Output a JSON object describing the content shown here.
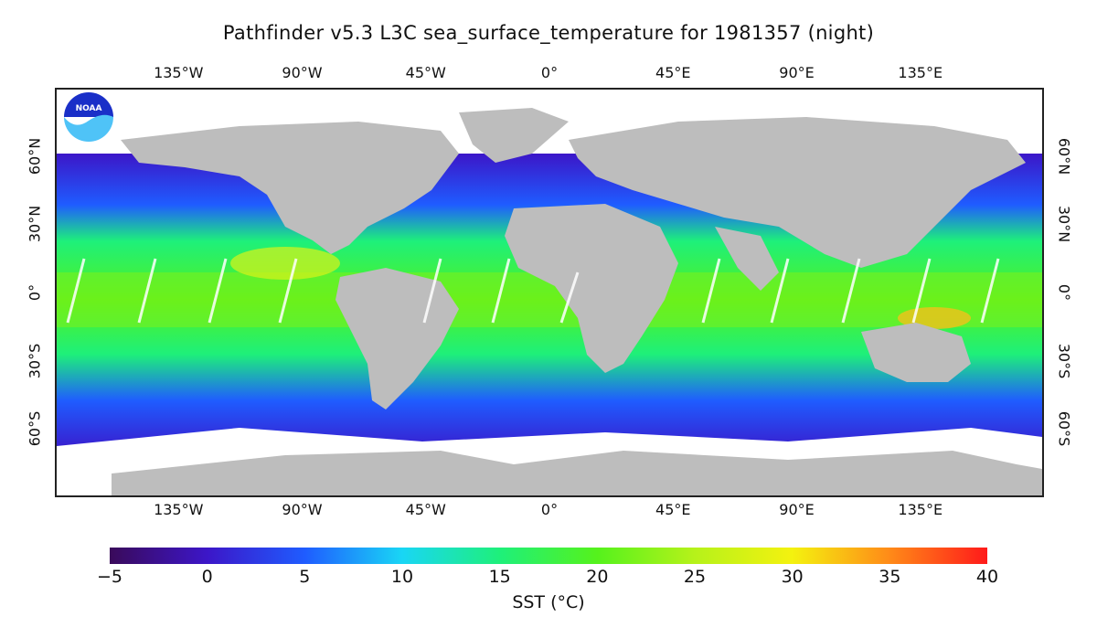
{
  "title": "Pathfinder v5.3 L3C sea_surface_temperature for 1981357 (night)",
  "logo_text": "NOAA",
  "map": {
    "type": "global sea surface temperature map",
    "projection": "equirectangular",
    "land_color": "#bdbdbd",
    "no_data_color": "#ffffff",
    "lon_labels": [
      "135°W",
      "90°W",
      "45°W",
      "0°",
      "45°E",
      "90°E",
      "135°E"
    ],
    "lon_values": [
      -135,
      -90,
      -45,
      0,
      45,
      90,
      135
    ],
    "lat_labels": [
      "60°N",
      "30°N",
      "0°",
      "30°S",
      "60°S"
    ],
    "lat_values": [
      60,
      30,
      0,
      -30,
      -60
    ]
  },
  "colorbar": {
    "label": "SST (°C)",
    "min": -5,
    "max": 40,
    "tick_labels": [
      "−5",
      "0",
      "5",
      "10",
      "15",
      "20",
      "25",
      "30",
      "35",
      "40"
    ],
    "tick_values": [
      -5,
      0,
      5,
      10,
      15,
      20,
      25,
      30,
      35,
      40
    ],
    "colors": [
      "#3a0a5a",
      "#3c16c8",
      "#1f5cff",
      "#19d6f5",
      "#1ef07a",
      "#55f21c",
      "#b6f21a",
      "#f4f20f",
      "#ff8a18",
      "#ff1a1a"
    ]
  }
}
